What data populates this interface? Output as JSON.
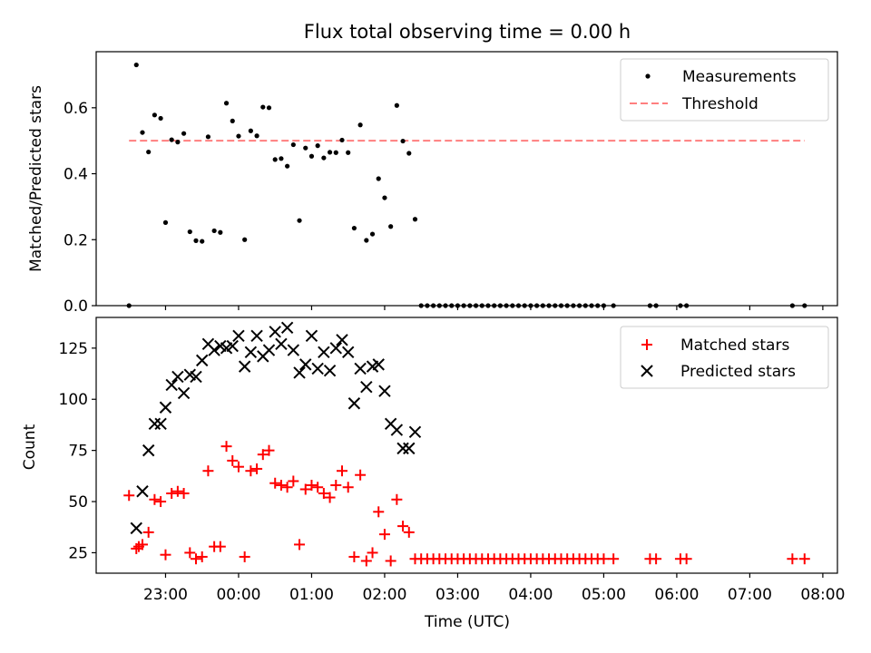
{
  "title": "Flux total observing time = 0.00 h",
  "xlabel": "Time (UTC)",
  "x_ticks": [
    "23:00",
    "00:00",
    "01:00",
    "02:00",
    "03:00",
    "04:00",
    "05:00",
    "06:00",
    "07:00",
    "08:00"
  ],
  "chart_data": [
    {
      "type": "scatter",
      "ylabel": "Matched/Predicted stars",
      "xlim": [
        "22:03",
        "08:12"
      ],
      "ylim": [
        0,
        0.77
      ],
      "y_ticks": [
        "0.0",
        "0.2",
        "0.4",
        "0.6"
      ],
      "legend": {
        "position": "top-right",
        "entries": [
          "Measurements",
          "Threshold"
        ]
      },
      "series": [
        {
          "name": "Measurements",
          "marker": "dot",
          "color": "#000000",
          "points": [
            [
              "22:30",
              0.0
            ],
            [
              "22:36",
              0.73
            ],
            [
              "22:41",
              0.525
            ],
            [
              "22:46",
              0.466
            ],
            [
              "22:51",
              0.578
            ],
            [
              "22:56",
              0.568
            ],
            [
              "23:00",
              0.252
            ],
            [
              "23:05",
              0.503
            ],
            [
              "23:10",
              0.496
            ],
            [
              "23:15",
              0.522
            ],
            [
              "23:20",
              0.224
            ],
            [
              "23:25",
              0.197
            ],
            [
              "23:30",
              0.195
            ],
            [
              "23:35",
              0.512
            ],
            [
              "23:40",
              0.227
            ],
            [
              "23:45",
              0.222
            ],
            [
              "23:50",
              0.614
            ],
            [
              "23:55",
              0.56
            ],
            [
              "00:00",
              0.514
            ],
            [
              "00:05",
              0.2
            ],
            [
              "00:10",
              0.53
            ],
            [
              "00:15",
              0.515
            ],
            [
              "00:20",
              0.602
            ],
            [
              "00:25",
              0.6
            ],
            [
              "00:30",
              0.443
            ],
            [
              "00:35",
              0.446
            ],
            [
              "00:40",
              0.423
            ],
            [
              "00:45",
              0.488
            ],
            [
              "00:50",
              0.258
            ],
            [
              "00:55",
              0.478
            ],
            [
              "01:00",
              0.453
            ],
            [
              "01:05",
              0.485
            ],
            [
              "01:10",
              0.448
            ],
            [
              "01:15",
              0.465
            ],
            [
              "01:20",
              0.464
            ],
            [
              "01:25",
              0.502
            ],
            [
              "01:30",
              0.464
            ],
            [
              "01:35",
              0.235
            ],
            [
              "01:40",
              0.548
            ],
            [
              "01:45",
              0.198
            ],
            [
              "01:50",
              0.217
            ],
            [
              "01:55",
              0.385
            ],
            [
              "02:00",
              0.327
            ],
            [
              "02:05",
              0.24
            ],
            [
              "02:10",
              0.607
            ],
            [
              "02:15",
              0.499
            ],
            [
              "02:20",
              0.462
            ],
            [
              "02:25",
              0.262
            ],
            [
              "02:30",
              0.0
            ],
            [
              "02:35",
              0.0
            ],
            [
              "02:40",
              0.0
            ],
            [
              "02:45",
              0.0
            ],
            [
              "02:50",
              0.0
            ],
            [
              "02:55",
              0.0
            ],
            [
              "03:00",
              0.0
            ],
            [
              "03:05",
              0.0
            ],
            [
              "03:10",
              0.0
            ],
            [
              "03:15",
              0.0
            ],
            [
              "03:20",
              0.0
            ],
            [
              "03:25",
              0.0
            ],
            [
              "03:30",
              0.0
            ],
            [
              "03:35",
              0.0
            ],
            [
              "03:40",
              0.0
            ],
            [
              "03:45",
              0.0
            ],
            [
              "03:50",
              0.0
            ],
            [
              "03:55",
              0.0
            ],
            [
              "04:00",
              0.0
            ],
            [
              "04:05",
              0.0
            ],
            [
              "04:10",
              0.0
            ],
            [
              "04:15",
              0.0
            ],
            [
              "04:20",
              0.0
            ],
            [
              "04:25",
              0.0
            ],
            [
              "04:30",
              0.0
            ],
            [
              "04:35",
              0.0
            ],
            [
              "04:40",
              0.0
            ],
            [
              "04:45",
              0.0
            ],
            [
              "04:50",
              0.0
            ],
            [
              "04:55",
              0.0
            ],
            [
              "05:00",
              0.0
            ],
            [
              "05:08",
              0.0
            ],
            [
              "05:38",
              0.0
            ],
            [
              "05:43",
              0.0
            ],
            [
              "06:03",
              0.0
            ],
            [
              "06:08",
              0.0
            ],
            [
              "07:35",
              0.0
            ],
            [
              "07:45",
              0.0
            ]
          ]
        },
        {
          "name": "Threshold",
          "style": "dashed",
          "color": "#ff7f7f",
          "points": [
            [
              "22:30",
              0.5
            ],
            [
              "07:45",
              0.5
            ]
          ]
        }
      ]
    },
    {
      "type": "scatter",
      "ylabel": "Count",
      "xlim": [
        "22:03",
        "08:12"
      ],
      "ylim": [
        15,
        140
      ],
      "y_ticks": [
        "25",
        "50",
        "75",
        "100",
        "125"
      ],
      "legend": {
        "position": "top-right",
        "entries": [
          "Matched stars",
          "Predicted stars"
        ]
      },
      "series": [
        {
          "name": "Matched stars",
          "marker": "plus",
          "color": "#ff0000",
          "points": [
            [
              "22:30",
              53
            ],
            [
              "22:36",
              27
            ],
            [
              "22:38",
              28
            ],
            [
              "22:41",
              29
            ],
            [
              "22:46",
              35
            ],
            [
              "22:51",
              51
            ],
            [
              "22:56",
              50
            ],
            [
              "23:00",
              24
            ],
            [
              "23:05",
              54
            ],
            [
              "23:10",
              55
            ],
            [
              "23:15",
              54
            ],
            [
              "23:20",
              25
            ],
            [
              "23:25",
              22
            ],
            [
              "23:30",
              23
            ],
            [
              "23:35",
              65
            ],
            [
              "23:40",
              28
            ],
            [
              "23:45",
              28
            ],
            [
              "23:50",
              77
            ],
            [
              "23:55",
              70
            ],
            [
              "00:00",
              67
            ],
            [
              "00:05",
              23
            ],
            [
              "00:10",
              65
            ],
            [
              "00:15",
              66
            ],
            [
              "00:20",
              73
            ],
            [
              "00:25",
              75
            ],
            [
              "00:30",
              59
            ],
            [
              "00:35",
              58
            ],
            [
              "00:40",
              57
            ],
            [
              "00:45",
              60
            ],
            [
              "00:50",
              29
            ],
            [
              "00:55",
              56
            ],
            [
              "01:00",
              58
            ],
            [
              "01:05",
              57
            ],
            [
              "01:10",
              54
            ],
            [
              "01:15",
              52
            ],
            [
              "01:20",
              58
            ],
            [
              "01:25",
              65
            ],
            [
              "01:30",
              57
            ],
            [
              "01:35",
              23
            ],
            [
              "01:40",
              63
            ],
            [
              "01:45",
              21
            ],
            [
              "01:50",
              25
            ],
            [
              "01:55",
              45
            ],
            [
              "02:00",
              34
            ],
            [
              "02:05",
              21
            ],
            [
              "02:10",
              51
            ],
            [
              "02:15",
              38
            ],
            [
              "02:20",
              35
            ],
            [
              "02:25",
              22
            ],
            [
              "02:30",
              22
            ],
            [
              "02:35",
              22
            ],
            [
              "02:40",
              22
            ],
            [
              "02:45",
              22
            ],
            [
              "02:50",
              22
            ],
            [
              "02:55",
              22
            ],
            [
              "03:00",
              22
            ],
            [
              "03:05",
              22
            ],
            [
              "03:10",
              22
            ],
            [
              "03:15",
              22
            ],
            [
              "03:20",
              22
            ],
            [
              "03:25",
              22
            ],
            [
              "03:30",
              22
            ],
            [
              "03:35",
              22
            ],
            [
              "03:40",
              22
            ],
            [
              "03:45",
              22
            ],
            [
              "03:50",
              22
            ],
            [
              "03:55",
              22
            ],
            [
              "04:00",
              22
            ],
            [
              "04:05",
              22
            ],
            [
              "04:10",
              22
            ],
            [
              "04:15",
              22
            ],
            [
              "04:20",
              22
            ],
            [
              "04:25",
              22
            ],
            [
              "04:30",
              22
            ],
            [
              "04:35",
              22
            ],
            [
              "04:40",
              22
            ],
            [
              "04:45",
              22
            ],
            [
              "04:50",
              22
            ],
            [
              "04:55",
              22
            ],
            [
              "05:00",
              22
            ],
            [
              "05:08",
              22
            ],
            [
              "05:38",
              22
            ],
            [
              "05:43",
              22
            ],
            [
              "06:03",
              22
            ],
            [
              "06:08",
              22
            ],
            [
              "07:35",
              22
            ],
            [
              "07:45",
              22
            ]
          ]
        },
        {
          "name": "Predicted stars",
          "marker": "x",
          "color": "#000000",
          "points": [
            [
              "22:36",
              37
            ],
            [
              "22:41",
              55
            ],
            [
              "22:46",
              75
            ],
            [
              "22:51",
              88
            ],
            [
              "22:56",
              88
            ],
            [
              "23:00",
              96
            ],
            [
              "23:05",
              107
            ],
            [
              "23:10",
              111
            ],
            [
              "23:15",
              103
            ],
            [
              "23:20",
              112
            ],
            [
              "23:25",
              111
            ],
            [
              "23:30",
              119
            ],
            [
              "23:35",
              127
            ],
            [
              "23:40",
              124
            ],
            [
              "23:45",
              126
            ],
            [
              "23:50",
              125
            ],
            [
              "23:55",
              126
            ],
            [
              "00:00",
              131
            ],
            [
              "00:05",
              116
            ],
            [
              "00:10",
              123
            ],
            [
              "00:15",
              131
            ],
            [
              "00:20",
              121
            ],
            [
              "00:25",
              124
            ],
            [
              "00:30",
              133
            ],
            [
              "00:35",
              127
            ],
            [
              "00:40",
              135
            ],
            [
              "00:45",
              124
            ],
            [
              "00:50",
              113
            ],
            [
              "00:55",
              117
            ],
            [
              "01:00",
              131
            ],
            [
              "01:05",
              115
            ],
            [
              "01:10",
              123
            ],
            [
              "01:15",
              114
            ],
            [
              "01:20",
              125
            ],
            [
              "01:25",
              129
            ],
            [
              "01:30",
              123
            ],
            [
              "01:35",
              98
            ],
            [
              "01:40",
              115
            ],
            [
              "01:45",
              106
            ],
            [
              "01:50",
              116
            ],
            [
              "01:55",
              117
            ],
            [
              "02:00",
              104
            ],
            [
              "02:05",
              88
            ],
            [
              "02:10",
              85
            ],
            [
              "02:15",
              76
            ],
            [
              "02:20",
              76
            ],
            [
              "02:25",
              84
            ]
          ]
        }
      ]
    }
  ]
}
